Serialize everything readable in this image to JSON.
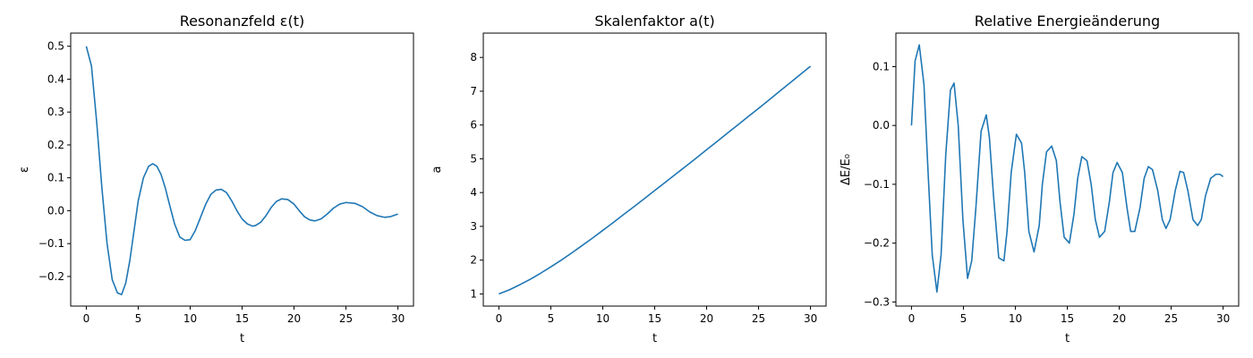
{
  "line_color": "#1f77b4",
  "chart_data": [
    {
      "type": "line",
      "title": "Resonanzfeld ε(t)",
      "xlabel": "t",
      "ylabel": "ε",
      "xlim": [
        -1.5,
        31.5
      ],
      "ylim": [
        -0.29,
        0.54
      ],
      "xticks": [
        0,
        5,
        10,
        15,
        20,
        25,
        30
      ],
      "yticks": [
        -0.2,
        -0.1,
        0.0,
        0.1,
        0.2,
        0.3,
        0.4,
        0.5
      ],
      "ytick_labels": [
        "−0.2",
        "−0.1",
        "0.0",
        "0.1",
        "0.2",
        "0.3",
        "0.4",
        "0.5"
      ],
      "grid": false,
      "series": [
        {
          "x": [
            0,
            0.5,
            1.0,
            1.5,
            2.0,
            2.5,
            3.0,
            3.4,
            3.8,
            4.2,
            4.6,
            5.0,
            5.5,
            6.0,
            6.4,
            6.8,
            7.2,
            7.6,
            8.0,
            8.5,
            9.0,
            9.5,
            10.0,
            10.5,
            11.0,
            11.5,
            12.0,
            12.5,
            13.0,
            13.5,
            14.0,
            14.5,
            15.0,
            15.5,
            16.0,
            16.3,
            16.8,
            17.3,
            17.8,
            18.3,
            18.8,
            19.4,
            20.0,
            20.5,
            21.0,
            21.5,
            22.0,
            22.6,
            23.2,
            23.8,
            24.4,
            25.0,
            25.9,
            26.6,
            27.3,
            28.0,
            28.7,
            29.3,
            30.0
          ],
          "y": [
            0.5,
            0.44,
            0.27,
            0.07,
            -0.1,
            -0.21,
            -0.25,
            -0.255,
            -0.22,
            -0.15,
            -0.06,
            0.03,
            0.1,
            0.135,
            0.143,
            0.135,
            0.11,
            0.07,
            0.02,
            -0.04,
            -0.08,
            -0.09,
            -0.088,
            -0.06,
            -0.02,
            0.02,
            0.05,
            0.063,
            0.065,
            0.055,
            0.03,
            0.0,
            -0.025,
            -0.04,
            -0.047,
            -0.045,
            -0.035,
            -0.015,
            0.01,
            0.028,
            0.036,
            0.034,
            0.02,
            0.0,
            -0.018,
            -0.028,
            -0.031,
            -0.025,
            -0.01,
            0.008,
            0.02,
            0.025,
            0.022,
            0.012,
            -0.004,
            -0.015,
            -0.02,
            -0.018,
            -0.01
          ]
        }
      ]
    },
    {
      "type": "line",
      "title": "Skalenfaktor a(t)",
      "xlabel": "t",
      "ylabel": "a",
      "xlim": [
        -1.5,
        31.5
      ],
      "ylim": [
        0.64,
        8.72
      ],
      "xticks": [
        0,
        5,
        10,
        15,
        20,
        25,
        30
      ],
      "yticks": [
        1,
        2,
        3,
        4,
        5,
        6,
        7,
        8
      ],
      "ytick_labels": [
        "1",
        "2",
        "3",
        "4",
        "5",
        "6",
        "7",
        "8"
      ],
      "grid": false,
      "series": [
        {
          "x": [
            0,
            1,
            2,
            3,
            4,
            5,
            6,
            7,
            8,
            9,
            10,
            11,
            12,
            13,
            14,
            15,
            16,
            17,
            18,
            19,
            20,
            21,
            22,
            23,
            24,
            25,
            26,
            27,
            28,
            29,
            30
          ],
          "y": [
            1.0,
            1.12,
            1.27,
            1.43,
            1.61,
            1.8,
            2.0,
            2.21,
            2.43,
            2.65,
            2.88,
            3.11,
            3.35,
            3.58,
            3.82,
            4.06,
            4.3,
            4.54,
            4.78,
            5.02,
            5.27,
            5.51,
            5.76,
            6.0,
            6.25,
            6.49,
            6.74,
            6.99,
            7.24,
            7.49,
            7.74
          ]
        }
      ]
    },
    {
      "type": "line",
      "title": "Relative Energieänderung",
      "xlabel": "t",
      "ylabel": "ΔE/E₀",
      "xlim": [
        -1.5,
        31.5
      ],
      "ylim": [
        -0.307,
        0.157
      ],
      "xticks": [
        0,
        5,
        10,
        15,
        20,
        25,
        30
      ],
      "yticks": [
        -0.3,
        -0.2,
        -0.1,
        0.0,
        0.1
      ],
      "ytick_labels": [
        "−0.3",
        "−0.2",
        "−0.1",
        "0.0",
        "0.1"
      ],
      "grid": false,
      "series": [
        {
          "x": [
            0,
            0.35,
            0.75,
            1.2,
            1.6,
            2.0,
            2.45,
            2.85,
            3.3,
            3.75,
            4.1,
            4.5,
            4.95,
            5.4,
            5.8,
            6.2,
            6.7,
            7.2,
            7.5,
            7.9,
            8.4,
            8.9,
            9.2,
            9.6,
            10.1,
            10.6,
            10.9,
            11.3,
            11.8,
            12.3,
            12.6,
            13.0,
            13.5,
            13.95,
            14.3,
            14.7,
            15.2,
            15.65,
            16.0,
            16.4,
            16.9,
            17.3,
            17.7,
            18.1,
            18.6,
            19.05,
            19.4,
            19.8,
            20.3,
            20.75,
            21.1,
            21.5,
            22.0,
            22.4,
            22.8,
            23.2,
            23.7,
            24.15,
            24.5,
            24.9,
            25.4,
            25.85,
            26.2,
            26.6,
            27.1,
            27.55,
            27.9,
            28.3,
            28.8,
            29.3,
            29.7,
            30.0
          ],
          "y": [
            0.0,
            0.11,
            0.137,
            0.07,
            -0.08,
            -0.22,
            -0.283,
            -0.22,
            -0.05,
            0.06,
            0.072,
            0.0,
            -0.16,
            -0.26,
            -0.23,
            -0.14,
            -0.01,
            0.018,
            -0.02,
            -0.12,
            -0.225,
            -0.23,
            -0.18,
            -0.08,
            -0.015,
            -0.03,
            -0.08,
            -0.18,
            -0.215,
            -0.17,
            -0.1,
            -0.045,
            -0.035,
            -0.06,
            -0.13,
            -0.19,
            -0.2,
            -0.15,
            -0.09,
            -0.053,
            -0.06,
            -0.1,
            -0.16,
            -0.19,
            -0.18,
            -0.13,
            -0.08,
            -0.063,
            -0.08,
            -0.14,
            -0.18,
            -0.18,
            -0.14,
            -0.09,
            -0.07,
            -0.075,
            -0.11,
            -0.16,
            -0.175,
            -0.16,
            -0.11,
            -0.078,
            -0.08,
            -0.11,
            -0.16,
            -0.17,
            -0.16,
            -0.12,
            -0.09,
            -0.083,
            -0.083,
            -0.087
          ]
        }
      ]
    }
  ]
}
